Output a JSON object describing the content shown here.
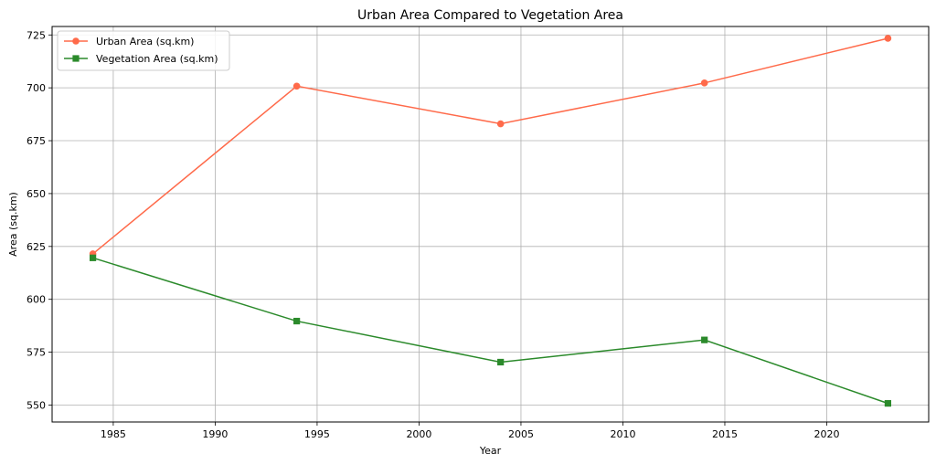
{
  "chart_data": {
    "type": "line",
    "title": "Urban Area Compared to Vegetation Area",
    "xlabel": "Year",
    "ylabel": "Area (sq.km)",
    "x": [
      1984,
      1994,
      2004,
      2014,
      2023
    ],
    "xlim": [
      1982,
      2025
    ],
    "ylim": [
      542,
      729
    ],
    "xticks": [
      1985,
      1990,
      1995,
      2000,
      2005,
      2010,
      2015,
      2020
    ],
    "yticks": [
      550,
      575,
      600,
      625,
      650,
      675,
      700,
      725
    ],
    "grid": true,
    "legend_position": "top-left",
    "series": [
      {
        "name": "Urban Area (sq.km)",
        "color": "#ff6a4a",
        "marker": "circle",
        "values": [
          621.5,
          700.8,
          683.0,
          702.3,
          723.4
        ]
      },
      {
        "name": "Vegetation Area (sq.km)",
        "color": "#2b8a2b",
        "marker": "square",
        "values": [
          619.6,
          589.7,
          570.3,
          580.8,
          550.8
        ]
      }
    ]
  }
}
